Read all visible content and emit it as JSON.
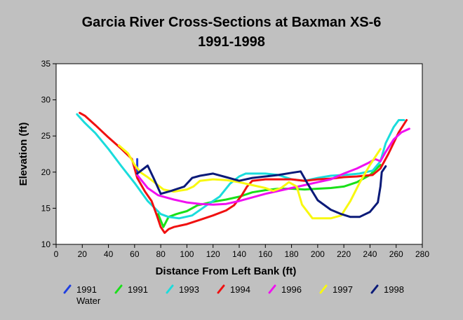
{
  "chart_data": {
    "type": "line",
    "title": "Garcia River Cross-Sections at Baxman XS-6",
    "subtitle": "1991-1998",
    "xlabel": "Distance From Left Bank (ft)",
    "ylabel": "Elevation (ft)",
    "xlim": [
      0,
      280
    ],
    "ylim": [
      10,
      35
    ],
    "xticks": [
      0,
      20,
      40,
      60,
      80,
      100,
      120,
      140,
      160,
      180,
      200,
      220,
      240,
      260,
      280
    ],
    "yticks": [
      10,
      15,
      20,
      25,
      30,
      35
    ],
    "grid": false,
    "legend_position": "bottom",
    "series": [
      {
        "name": "1991 Water",
        "color": "#1f3fe0",
        "points": [
          [
            62,
            21.8
          ],
          [
            62,
            19.5
          ]
        ]
      },
      {
        "name": "1991",
        "color": "#19e019",
        "points": [
          [
            78,
            14.2
          ],
          [
            82,
            12.4
          ],
          [
            86,
            13.8
          ],
          [
            92,
            14.2
          ],
          [
            100,
            14.6
          ],
          [
            108,
            15.4
          ],
          [
            120,
            15.9
          ],
          [
            130,
            16.2
          ],
          [
            140,
            16.6
          ],
          [
            150,
            17.2
          ],
          [
            160,
            17.5
          ],
          [
            170,
            17.7
          ],
          [
            180,
            17.7
          ],
          [
            190,
            17.6
          ],
          [
            200,
            17.7
          ],
          [
            210,
            17.8
          ],
          [
            220,
            18.0
          ],
          [
            230,
            18.6
          ],
          [
            240,
            19.6
          ],
          [
            248,
            21.0
          ]
        ]
      },
      {
        "name": "1993",
        "color": "#1adcdc",
        "points": [
          [
            16,
            28.0
          ],
          [
            22,
            26.8
          ],
          [
            30,
            25.4
          ],
          [
            40,
            23.2
          ],
          [
            50,
            20.8
          ],
          [
            60,
            18.5
          ],
          [
            70,
            16.0
          ],
          [
            80,
            14.2
          ],
          [
            86,
            13.8
          ],
          [
            94,
            13.6
          ],
          [
            104,
            14.0
          ],
          [
            115,
            15.4
          ],
          [
            125,
            16.6
          ],
          [
            133,
            18.4
          ],
          [
            140,
            19.4
          ],
          [
            145,
            19.8
          ],
          [
            160,
            19.8
          ],
          [
            170,
            19.6
          ],
          [
            180,
            19.0
          ],
          [
            190,
            18.8
          ],
          [
            200,
            19.2
          ],
          [
            210,
            19.5
          ],
          [
            220,
            19.6
          ],
          [
            232,
            19.8
          ],
          [
            242,
            20.2
          ],
          [
            248,
            21.5
          ],
          [
            252,
            24.0
          ],
          [
            258,
            26.2
          ],
          [
            262,
            27.2
          ],
          [
            266,
            27.2
          ]
        ]
      },
      {
        "name": "1994",
        "color": "#f01010",
        "points": [
          [
            18,
            28.2
          ],
          [
            22,
            27.8
          ],
          [
            30,
            26.5
          ],
          [
            40,
            24.8
          ],
          [
            50,
            23.2
          ],
          [
            58,
            21.8
          ],
          [
            62,
            19.2
          ],
          [
            68,
            17.3
          ],
          [
            73,
            16.0
          ],
          [
            77,
            14.0
          ],
          [
            80,
            12.4
          ],
          [
            83,
            11.6
          ],
          [
            86,
            12.1
          ],
          [
            90,
            12.4
          ],
          [
            100,
            12.8
          ],
          [
            110,
            13.4
          ],
          [
            120,
            14.0
          ],
          [
            130,
            14.7
          ],
          [
            136,
            15.4
          ],
          [
            142,
            16.8
          ],
          [
            146,
            18.0
          ],
          [
            150,
            18.8
          ],
          [
            160,
            19.0
          ],
          [
            170,
            19.0
          ],
          [
            180,
            19.0
          ],
          [
            190,
            18.8
          ],
          [
            200,
            19.0
          ],
          [
            210,
            19.1
          ],
          [
            220,
            19.3
          ],
          [
            230,
            19.4
          ],
          [
            242,
            19.6
          ],
          [
            248,
            20.5
          ],
          [
            254,
            22.5
          ],
          [
            262,
            25.5
          ],
          [
            268,
            27.2
          ]
        ]
      },
      {
        "name": "1996",
        "color": "#f010f0",
        "points": [
          [
            62,
            19.6
          ],
          [
            70,
            17.8
          ],
          [
            78,
            16.8
          ],
          [
            90,
            16.2
          ],
          [
            100,
            15.8
          ],
          [
            110,
            15.6
          ],
          [
            120,
            15.5
          ],
          [
            130,
            15.6
          ],
          [
            140,
            16.0
          ],
          [
            150,
            16.5
          ],
          [
            160,
            17.0
          ],
          [
            170,
            17.4
          ],
          [
            180,
            17.8
          ],
          [
            190,
            18.2
          ],
          [
            200,
            18.6
          ],
          [
            210,
            19.0
          ],
          [
            220,
            19.8
          ],
          [
            230,
            20.5
          ],
          [
            238,
            21.2
          ],
          [
            244,
            21.8
          ],
          [
            248,
            21.5
          ],
          [
            252,
            22.8
          ],
          [
            258,
            24.5
          ],
          [
            264,
            25.5
          ],
          [
            270,
            26.0
          ]
        ]
      },
      {
        "name": "1997",
        "color": "#f8f810",
        "points": [
          [
            48,
            23.7
          ],
          [
            55,
            22.6
          ],
          [
            60,
            21.0
          ],
          [
            65,
            19.9
          ],
          [
            70,
            19.3
          ],
          [
            75,
            18.6
          ],
          [
            82,
            17.6
          ],
          [
            90,
            17.3
          ],
          [
            100,
            17.6
          ],
          [
            105,
            18.0
          ],
          [
            110,
            18.8
          ],
          [
            120,
            19.0
          ],
          [
            130,
            18.9
          ],
          [
            140,
            18.6
          ],
          [
            150,
            18.2
          ],
          [
            160,
            17.8
          ],
          [
            166,
            17.4
          ],
          [
            172,
            17.8
          ],
          [
            178,
            18.6
          ],
          [
            184,
            18.0
          ],
          [
            188,
            15.5
          ],
          [
            196,
            13.6
          ],
          [
            210,
            13.6
          ],
          [
            218,
            14.0
          ],
          [
            225,
            16.0
          ],
          [
            232,
            18.5
          ],
          [
            240,
            21.0
          ],
          [
            248,
            23.2
          ]
        ]
      },
      {
        "name": "1998",
        "color": "#0a1a78",
        "points": [
          [
            62,
            19.8
          ],
          [
            70,
            20.9
          ],
          [
            75,
            19.0
          ],
          [
            80,
            17.0
          ],
          [
            88,
            17.4
          ],
          [
            98,
            18.0
          ],
          [
            104,
            19.2
          ],
          [
            110,
            19.5
          ],
          [
            120,
            19.8
          ],
          [
            130,
            19.3
          ],
          [
            140,
            18.8
          ],
          [
            150,
            19.2
          ],
          [
            160,
            19.4
          ],
          [
            170,
            19.6
          ],
          [
            180,
            19.9
          ],
          [
            187,
            20.1
          ],
          [
            192,
            18.5
          ],
          [
            200,
            16.1
          ],
          [
            210,
            14.8
          ],
          [
            218,
            14.2
          ],
          [
            225,
            13.8
          ],
          [
            232,
            13.8
          ],
          [
            240,
            14.5
          ],
          [
            246,
            15.8
          ],
          [
            248,
            18.0
          ],
          [
            249,
            20.0
          ],
          [
            252,
            20.8
          ]
        ]
      }
    ]
  }
}
